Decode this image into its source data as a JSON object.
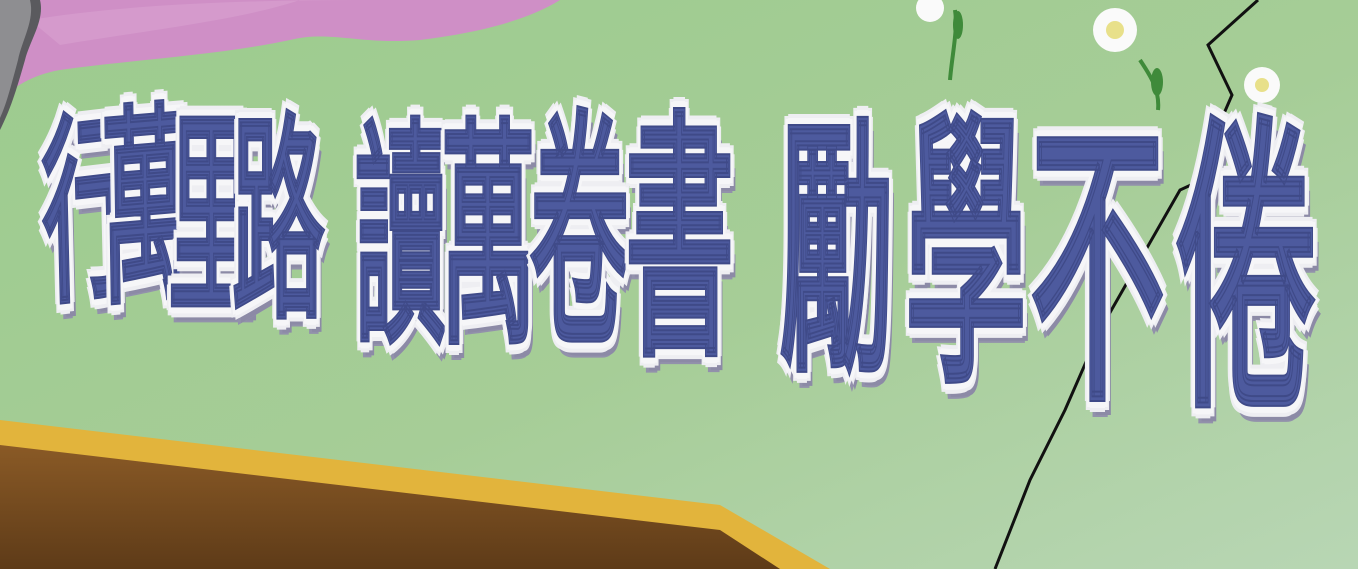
{
  "banner": {
    "phrase_1": [
      "行",
      "萬",
      "里",
      "路"
    ],
    "phrase_2": [
      "讀",
      "萬",
      "卷",
      "書"
    ],
    "phrase_3": [
      "勵",
      "學",
      "不",
      "倦"
    ]
  },
  "colors": {
    "background_green": "#9cc58c",
    "hill_pink": "#cf8fc6",
    "text_blue": "#4d5a9e",
    "outline_white": "#f6f6f8",
    "frame_gold": "#e2b43c",
    "frame_brown": "#7a4e22"
  }
}
